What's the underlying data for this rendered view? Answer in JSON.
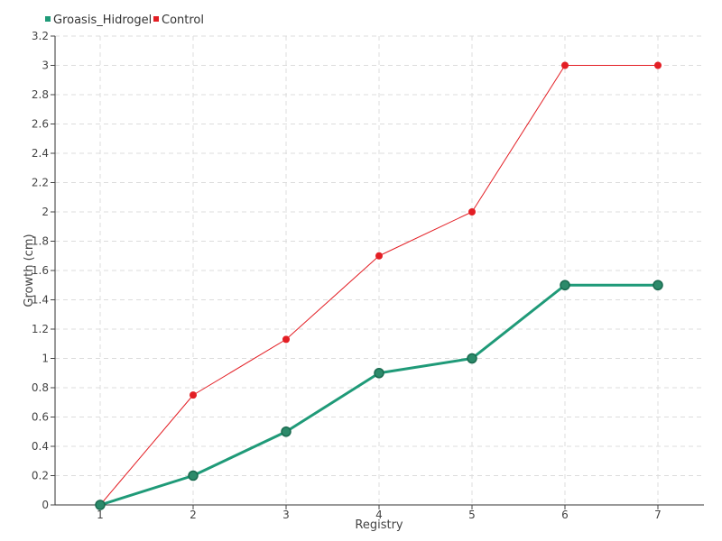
{
  "chart_data": {
    "type": "line",
    "xlabel": "Registry",
    "ylabel": "Growth (cm)",
    "categories": [
      "1",
      "2",
      "3",
      "4",
      "5",
      "6",
      "7"
    ],
    "y_ticks": [
      "0",
      "0.2",
      "0.4",
      "0.6",
      "0.8",
      "1",
      "1.2",
      "1.4",
      "1.6",
      "1.8",
      "2",
      "2.2",
      "2.4",
      "2.6",
      "2.8",
      "3",
      "3.2"
    ],
    "ylim": [
      0,
      3.2
    ],
    "grid": true,
    "legend_position": "top-left",
    "series": [
      {
        "name": "Groasis_Hidrogel",
        "color": "#1f9a78",
        "values": [
          0,
          0.2,
          0.5,
          0.9,
          1.0,
          1.5,
          1.5
        ]
      },
      {
        "name": "Control",
        "color": "#e31e24",
        "values": [
          0,
          0.75,
          1.13,
          1.7,
          2.0,
          3.0,
          3.0
        ]
      }
    ]
  }
}
